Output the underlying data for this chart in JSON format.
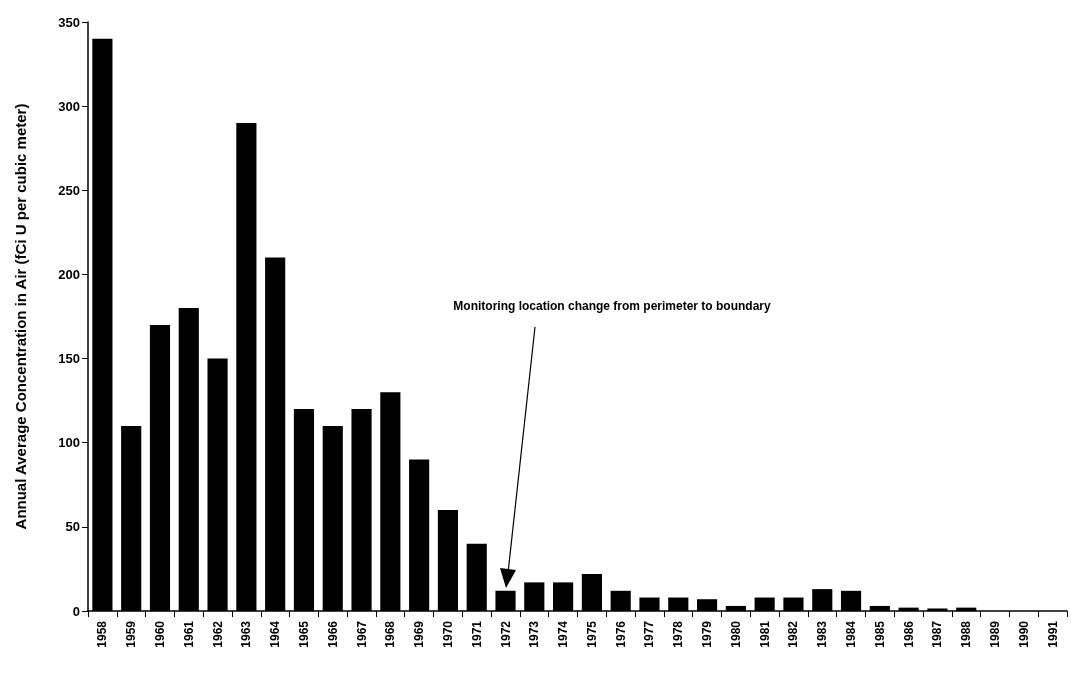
{
  "chart_data": {
    "type": "bar",
    "ylabel": "Annual Average Concentration in Air (fCi U per cubic meter)",
    "categories": [
      "1958",
      "1959",
      "1960",
      "1961",
      "1962",
      "1963",
      "1964",
      "1965",
      "1966",
      "1967",
      "1968",
      "1969",
      "1970",
      "1971",
      "1972",
      "1973",
      "1974",
      "1975",
      "1976",
      "1977",
      "1978",
      "1979",
      "1980",
      "1981",
      "1982",
      "1983",
      "1984",
      "1985",
      "1986",
      "1987",
      "1988",
      "1989",
      "1990",
      "1991"
    ],
    "values": [
      340,
      110,
      170,
      180,
      150,
      290,
      210,
      120,
      110,
      120,
      130,
      90,
      60,
      40,
      12,
      17,
      17,
      22,
      12,
      8,
      8,
      7,
      3,
      8,
      8,
      13,
      12,
      3,
      2,
      1.5,
      2,
      0,
      0,
      0
    ],
    "color": "#000000",
    "ylim": [
      0,
      350
    ],
    "yticks": [
      0,
      50,
      100,
      150,
      200,
      250,
      300,
      350
    ],
    "grid": false,
    "annotations": [
      "Monitoring location change from perimeter to boundary"
    ]
  }
}
